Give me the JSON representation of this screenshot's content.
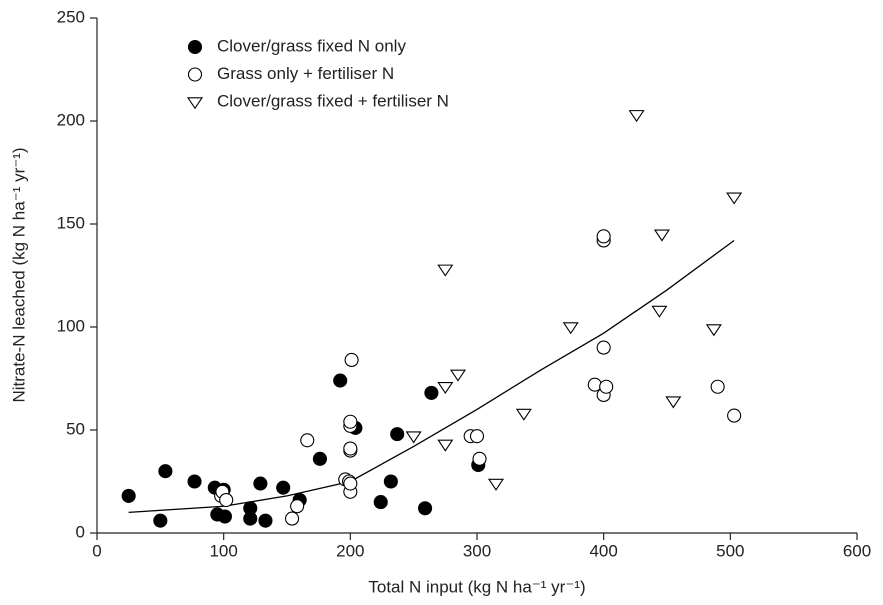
{
  "chart_data": {
    "type": "scatter",
    "xlabel": "Total N input (kg N ha⁻¹ yr⁻¹)",
    "ylabel": "Nitrate-N leached (kg N ha⁻¹ yr⁻¹)",
    "xlim": [
      0,
      600
    ],
    "xticks": [
      0,
      100,
      200,
      300,
      400,
      500,
      600
    ],
    "ylim": [
      0,
      250
    ],
    "yticks": [
      0,
      50,
      100,
      150,
      200,
      250
    ],
    "legend": "upper-left",
    "series": [
      {
        "name": "Clover/grass fixed N only",
        "color": "#000000",
        "marker": "filled-circle",
        "x": [
          25,
          50,
          54,
          77,
          93,
          95,
          100,
          101,
          121,
          121,
          129,
          133,
          147,
          160,
          176,
          192,
          204,
          224,
          232,
          237,
          259,
          264,
          301
        ],
        "y": [
          18,
          6,
          30,
          25,
          22,
          9,
          21,
          8,
          12,
          7,
          24,
          6,
          22,
          16,
          36,
          74,
          51,
          15,
          25,
          48,
          12,
          68,
          33
        ]
      },
      {
        "name": "Grass only + fertiliser N",
        "color": "#000000",
        "marker": "open-circle",
        "x": [
          98,
          99,
          102,
          154,
          158,
          166,
          196,
          199,
          200,
          200,
          200,
          200,
          200,
          200,
          201,
          295,
          300,
          302,
          393,
          400,
          400,
          400,
          400,
          402,
          490,
          503
        ],
        "y": [
          18,
          20,
          16,
          7,
          13,
          45,
          26,
          25,
          20,
          24,
          40,
          41,
          52,
          54,
          84,
          47,
          47,
          36,
          72,
          67,
          90,
          142,
          144,
          71,
          71,
          57
        ]
      },
      {
        "name": "Clover/grass fixed + fertiliser N",
        "color": "#000000",
        "marker": "triangle-down",
        "x": [
          250,
          275,
          275,
          275,
          285,
          315,
          337,
          374,
          426,
          444,
          446,
          455,
          487,
          503
        ],
        "y": [
          47,
          43,
          71,
          128,
          77,
          24,
          58,
          100,
          203,
          108,
          145,
          64,
          99,
          163
        ]
      }
    ],
    "trend": {
      "color": "#000000",
      "x": [
        25,
        100,
        150,
        200,
        250,
        300,
        350,
        400,
        450,
        503
      ],
      "y": [
        10,
        13,
        18,
        25,
        42,
        60,
        79,
        97,
        118,
        142
      ]
    }
  }
}
